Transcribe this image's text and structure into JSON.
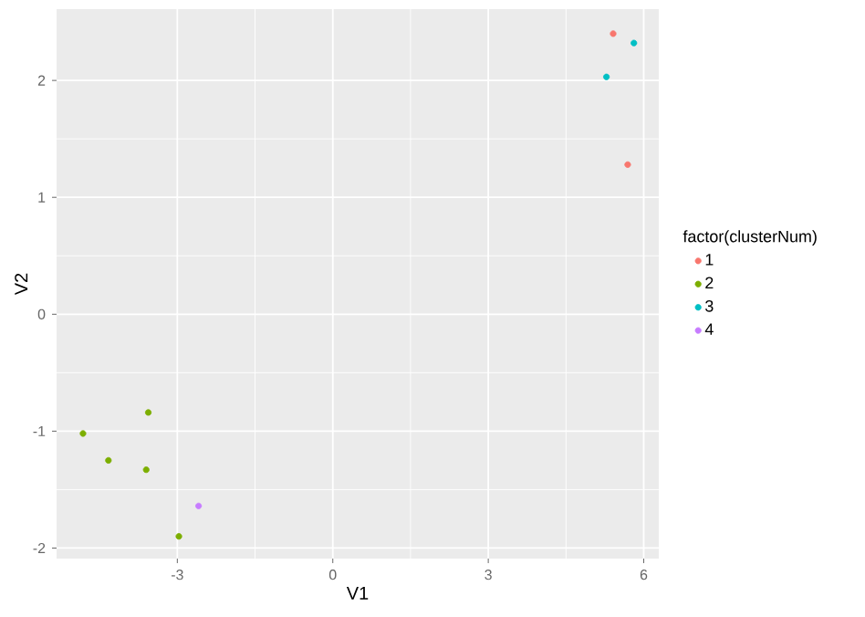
{
  "chart_data": {
    "type": "scatter",
    "xlabel": "V1",
    "ylabel": "V2",
    "legend_title": "factor(clusterNum)",
    "xlim": [
      -5.33,
      6.29
    ],
    "ylim": [
      -2.09,
      2.61
    ],
    "xticks": [
      -3,
      0,
      3,
      6
    ],
    "yticks": [
      -2,
      -1,
      0,
      1,
      2
    ],
    "grid": true,
    "legend": "right",
    "marker": "circle",
    "series": [
      {
        "name": "1",
        "color": "#F8766D",
        "x": [
          5.41,
          5.69
        ],
        "values": [
          2.4,
          1.28
        ]
      },
      {
        "name": "2",
        "color": "#7CAE00",
        "x": [
          -4.82,
          -4.33,
          -3.56,
          -3.6,
          -2.97
        ],
        "values": [
          -1.02,
          -1.25,
          -0.84,
          -1.33,
          -1.9
        ]
      },
      {
        "name": "3",
        "color": "#00BFC4",
        "x": [
          5.81,
          5.28
        ],
        "values": [
          2.32,
          2.03
        ]
      },
      {
        "name": "4",
        "color": "#C77CFF",
        "x": [
          -2.59
        ],
        "values": [
          -1.64
        ]
      }
    ]
  }
}
